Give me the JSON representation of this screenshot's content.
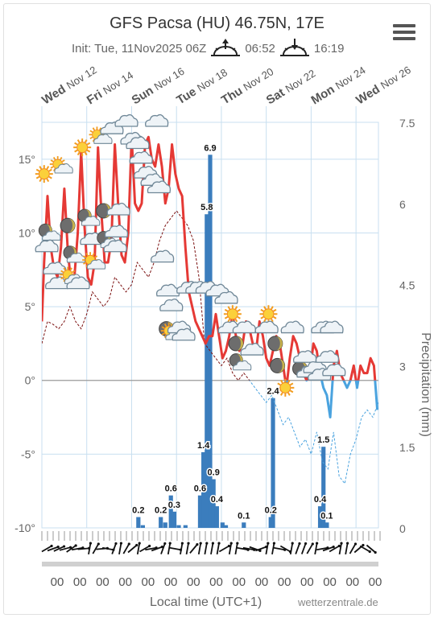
{
  "header": {
    "title": "GFS Pacsa (HU) 46.75N, 17E",
    "init": "Init: Tue, 11Nov2025 06Z",
    "sunrise": "06:52",
    "sunset": "16:19",
    "menu_icon": "hamburger-menu-icon"
  },
  "day_labels": [
    {
      "day": "Wed",
      "date": "Nov 12"
    },
    {
      "day": "Fri",
      "date": "Nov 14"
    },
    {
      "day": "Sun",
      "date": "Nov 16"
    },
    {
      "day": "Tue",
      "date": "Nov 18"
    },
    {
      "day": "Thu",
      "date": "Nov 20"
    },
    {
      "day": "Sat",
      "date": "Nov 22"
    },
    {
      "day": "Mon",
      "date": "Nov 24"
    },
    {
      "day": "Wed",
      "date": "Nov 26"
    }
  ],
  "x_tick_labels": [
    "00",
    "00",
    "00",
    "00",
    "00",
    "00",
    "00",
    "00",
    "00",
    "00",
    "00",
    "00",
    "00",
    "00",
    "00"
  ],
  "footer": {
    "xlabel": "Local time (UTC+1)",
    "credit": "wetterzentrale.de"
  },
  "chart_data": {
    "type": "line",
    "title": "GFS Pacsa (HU) 46.75N, 17E",
    "xlabel": "Local time (UTC+1)",
    "ylabel_left": "",
    "ylabel_right": "Precipitation (mm)",
    "y_left": {
      "min": -10,
      "max": 17.5,
      "ticks": [
        -10,
        -5,
        0,
        5,
        10,
        15
      ],
      "tick_labels": [
        "-10°",
        "-5°",
        "0°",
        "5°",
        "10°",
        "15°"
      ]
    },
    "y_right": {
      "min": 0,
      "max": 7.5,
      "ticks": [
        0,
        1.5,
        3,
        4.5,
        6,
        7.5
      ],
      "tick_labels": [
        "0",
        "1.5",
        "3",
        "4.5",
        "6",
        "7.5"
      ]
    },
    "x_range_days": [
      0,
      15
    ],
    "grid": true,
    "colors": {
      "temp_above_zero": "#e53935",
      "temp_below_zero": "#4aa3df",
      "dewpoint": "#7b1010",
      "dewpoint_below_zero": "#4aa3df",
      "precip_bar": "#3b7dbd",
      "grid": "#c8dff0"
    },
    "series": [
      {
        "name": "",
        "kind": "temperature",
        "x": [
          0.0,
          0.1,
          0.25,
          0.4,
          0.55,
          0.7,
          0.85,
          1.0,
          1.15,
          1.3,
          1.45,
          1.6,
          1.75,
          1.9,
          2.05,
          2.2,
          2.35,
          2.5,
          2.65,
          2.8,
          2.95,
          3.1,
          3.25,
          3.4,
          3.55,
          3.7,
          3.85,
          4.0,
          4.15,
          4.3,
          4.45,
          4.6,
          4.75,
          4.9,
          5.05,
          5.2,
          5.35,
          5.5,
          5.65,
          5.8,
          5.95,
          6.1,
          6.25,
          6.4,
          6.55,
          6.7,
          6.85,
          7.0,
          7.15,
          7.3,
          7.45,
          7.6,
          7.75,
          7.9,
          8.05,
          8.2,
          8.35,
          8.5,
          8.65,
          8.8,
          8.95,
          9.1,
          9.25,
          9.4,
          9.55,
          9.7,
          9.85,
          10.0,
          10.15,
          10.3,
          10.45,
          10.6,
          10.75,
          10.9,
          11.05,
          11.2,
          11.35,
          11.5,
          11.65,
          11.8,
          11.95,
          12.1,
          12.25,
          12.4,
          12.55,
          12.7,
          12.85,
          13.0,
          13.15,
          13.3,
          13.45,
          13.6,
          13.75,
          13.9,
          14.05,
          14.2,
          14.35,
          14.5,
          14.65,
          14.8,
          14.95
        ],
        "y": [
          4.0,
          8.0,
          12.5,
          9.0,
          7.5,
          7.0,
          9.0,
          13.0,
          9.0,
          6.5,
          7.0,
          10.0,
          15.5,
          10.5,
          7.0,
          6.5,
          8.0,
          15.8,
          11.5,
          8.0,
          8.0,
          9.5,
          16.0,
          12.0,
          8.5,
          8.0,
          10.0,
          16.5,
          12.0,
          11.5,
          12.0,
          16.0,
          16.5,
          15.0,
          14.5,
          16.0,
          14.5,
          12.0,
          13.0,
          16.0,
          14.0,
          13.0,
          12.5,
          9.0,
          6.0,
          5.0,
          4.0,
          3.5,
          3.0,
          2.5,
          3.0,
          3.0,
          4.5,
          3.0,
          1.5,
          2.0,
          3.0,
          4.5,
          3.0,
          2.0,
          2.5,
          4.0,
          3.5,
          2.5,
          2.0,
          4.0,
          3.0,
          1.5,
          1.0,
          2.0,
          3.0,
          2.5,
          1.0,
          -0.5,
          1.5,
          3.0,
          2.5,
          1.5,
          0.5,
          0.0,
          0.5,
          2.5,
          2.0,
          0.5,
          -0.5,
          -1.0,
          -2.5,
          1.0,
          2.0,
          0.5,
          0.0,
          -0.5,
          0.0,
          1.0,
          -0.5,
          1.0,
          0.5,
          0.5,
          1.5,
          1.0,
          -2.0
        ]
      },
      {
        "name": "",
        "kind": "dewpoint",
        "x": [
          0.0,
          0.25,
          0.5,
          0.75,
          1.0,
          1.25,
          1.5,
          1.75,
          2.0,
          2.25,
          2.5,
          2.75,
          3.0,
          3.25,
          3.5,
          3.75,
          4.0,
          4.25,
          4.5,
          4.75,
          5.0,
          5.25,
          5.5,
          5.75,
          6.0,
          6.25,
          6.5,
          6.75,
          7.0,
          7.25,
          7.5,
          7.75,
          8.0,
          8.25,
          8.5,
          8.75,
          9.0,
          9.25,
          9.5,
          9.75,
          10.0,
          10.25,
          10.5,
          10.75,
          11.0,
          11.25,
          11.5,
          11.75,
          12.0,
          12.25,
          12.5,
          12.75,
          13.0,
          13.25,
          13.5,
          13.75,
          14.0,
          14.25,
          14.5,
          14.75,
          15.0
        ],
        "y": [
          2.5,
          4.0,
          3.8,
          3.5,
          4.0,
          5.0,
          4.0,
          3.5,
          4.5,
          6.0,
          5.5,
          5.0,
          5.5,
          7.0,
          6.5,
          6.0,
          6.5,
          8.0,
          7.5,
          7.0,
          8.0,
          9.5,
          10.5,
          11.0,
          11.5,
          11.0,
          10.5,
          9.5,
          7.0,
          2.5,
          2.0,
          1.5,
          1.0,
          1.5,
          0.5,
          0.0,
          0.5,
          0.0,
          -0.5,
          -1.0,
          -1.5,
          -1.0,
          -2.0,
          -3.0,
          -2.5,
          -3.5,
          -4.5,
          -4.0,
          -5.0,
          -3.5,
          -5.5,
          -6.0,
          -3.5,
          -6.5,
          -7.0,
          -5.0,
          -4.0,
          -2.5,
          -2.0,
          -2.5,
          -1.5
        ]
      },
      {
        "name": "",
        "kind": "precipitation",
        "x": [
          4.3,
          4.5,
          5.3,
          5.5,
          5.75,
          5.9,
          6.1,
          6.4,
          7.05,
          7.2,
          7.35,
          7.5,
          7.65,
          7.8,
          8.05,
          8.2,
          9.0,
          10.2,
          10.3,
          12.4,
          12.55,
          12.7
        ],
        "y": [
          0.2,
          0.05,
          0.2,
          0.1,
          0.6,
          0.3,
          0.05,
          0.05,
          0.6,
          1.4,
          5.8,
          6.9,
          0.9,
          0.4,
          0.1,
          0.05,
          0.1,
          0.2,
          2.4,
          0.4,
          1.5,
          0.1
        ]
      }
    ],
    "precip_labels": [
      {
        "x": 4.3,
        "value": "0.2"
      },
      {
        "x": 5.3,
        "value": "0.2"
      },
      {
        "x": 5.75,
        "value": "0.6"
      },
      {
        "x": 5.9,
        "value": "0.3"
      },
      {
        "x": 7.05,
        "value": "0.6"
      },
      {
        "x": 7.2,
        "value": "1.4"
      },
      {
        "x": 7.35,
        "value": "5.8"
      },
      {
        "x": 7.5,
        "value": "6.9"
      },
      {
        "x": 7.65,
        "value": "0.9"
      },
      {
        "x": 7.8,
        "value": "0.4"
      },
      {
        "x": 9.0,
        "value": "0.1"
      },
      {
        "x": 10.2,
        "value": "0.2"
      },
      {
        "x": 10.3,
        "value": "2.4"
      },
      {
        "x": 12.4,
        "value": "0.4"
      },
      {
        "x": 12.55,
        "value": "1.5"
      },
      {
        "x": 12.7,
        "value": "0.1"
      }
    ],
    "weather_icons": [
      {
        "x": 0.1,
        "y": 14.0,
        "icon": "sun-icon"
      },
      {
        "x": 0.3,
        "y": 10.0,
        "icon": "moon-cloud-icon"
      },
      {
        "x": 0.2,
        "y": 9.0,
        "icon": "cloud-icon"
      },
      {
        "x": 0.55,
        "y": 7.5,
        "icon": "cloud-icon"
      },
      {
        "x": 0.65,
        "y": 6.5,
        "icon": "cloud-icon"
      },
      {
        "x": 0.85,
        "y": 14.5,
        "icon": "sun-cloud-icon"
      },
      {
        "x": 1.15,
        "y": 10.5,
        "icon": "moon-icon"
      },
      {
        "x": 1.4,
        "y": 8.5,
        "icon": "moon-cloud-icon"
      },
      {
        "x": 1.3,
        "y": 7.0,
        "icon": "sun-cloud-icon"
      },
      {
        "x": 1.6,
        "y": 6.5,
        "icon": "cloud-icon"
      },
      {
        "x": 1.8,
        "y": 15.8,
        "icon": "sun-icon"
      },
      {
        "x": 2.05,
        "y": 11.0,
        "icon": "moon-cloud-icon"
      },
      {
        "x": 2.2,
        "y": 9.5,
        "icon": "cloud-icon"
      },
      {
        "x": 2.3,
        "y": 8.0,
        "icon": "sun-cloud-icon"
      },
      {
        "x": 2.6,
        "y": 16.5,
        "icon": "sun-cloud-icon"
      },
      {
        "x": 2.75,
        "y": 11.5,
        "icon": "moon-icon"
      },
      {
        "x": 2.9,
        "y": 9.5,
        "icon": "moon-cloud-icon"
      },
      {
        "x": 3.1,
        "y": 17.0,
        "icon": "cloud-icon"
      },
      {
        "x": 3.4,
        "y": 11.5,
        "icon": "cloud-icon"
      },
      {
        "x": 3.3,
        "y": 10.0,
        "icon": "cloud-icon"
      },
      {
        "x": 3.25,
        "y": 9.0,
        "icon": "cloud-icon"
      },
      {
        "x": 3.75,
        "y": 17.5,
        "icon": "cloud-icon"
      },
      {
        "x": 4.0,
        "y": 16.3,
        "icon": "cloud-icon"
      },
      {
        "x": 4.25,
        "y": 16.0,
        "icon": "cloud-icon"
      },
      {
        "x": 4.4,
        "y": 15.0,
        "icon": "cloud-icon"
      },
      {
        "x": 4.6,
        "y": 14.0,
        "icon": "cloud-icon"
      },
      {
        "x": 4.9,
        "y": 13.5,
        "icon": "cloud-icon"
      },
      {
        "x": 5.2,
        "y": 13.0,
        "icon": "cloud-icon"
      },
      {
        "x": 5.1,
        "y": 17.5,
        "icon": "cloud-icon"
      },
      {
        "x": 5.35,
        "y": 8.3,
        "icon": "cloud-icon"
      },
      {
        "x": 5.6,
        "y": 6.0,
        "icon": "cloud-icon"
      },
      {
        "x": 5.75,
        "y": 5.0,
        "icon": "cloud-icon"
      },
      {
        "x": 5.55,
        "y": 3.5,
        "icon": "moon-icon"
      },
      {
        "x": 5.8,
        "y": 3.2,
        "icon": "sun-cloud-icon"
      },
      {
        "x": 6.1,
        "y": 3.5,
        "icon": "cloud-icon"
      },
      {
        "x": 6.3,
        "y": 3.0,
        "icon": "cloud-icon"
      },
      {
        "x": 6.5,
        "y": 6.2,
        "icon": "cloud-icon"
      },
      {
        "x": 6.9,
        "y": 6.2,
        "icon": "cloud-icon"
      },
      {
        "x": 7.35,
        "y": 6.2,
        "icon": "cloud-icon"
      },
      {
        "x": 7.8,
        "y": 6.0,
        "icon": "cloud-icon"
      },
      {
        "x": 8.2,
        "y": 5.5,
        "icon": "cloud-icon"
      },
      {
        "x": 8.5,
        "y": 4.5,
        "icon": "sun-icon"
      },
      {
        "x": 8.35,
        "y": 3.5,
        "icon": "cloud-icon"
      },
      {
        "x": 8.65,
        "y": 2.5,
        "icon": "moon-icon"
      },
      {
        "x": 8.8,
        "y": 1.2,
        "icon": "moon-cloud-icon"
      },
      {
        "x": 9.0,
        "y": 3.5,
        "icon": "cloud-icon"
      },
      {
        "x": 9.35,
        "y": 2.0,
        "icon": "cloud-icon"
      },
      {
        "x": 10.1,
        "y": 4.5,
        "icon": "sun-icon"
      },
      {
        "x": 10.0,
        "y": 3.5,
        "icon": "cloud-icon"
      },
      {
        "x": 10.4,
        "y": 2.5,
        "icon": "moon-icon"
      },
      {
        "x": 10.5,
        "y": 1.0,
        "icon": "moon-icon"
      },
      {
        "x": 10.85,
        "y": -0.5,
        "icon": "sun-icon"
      },
      {
        "x": 11.15,
        "y": 3.5,
        "icon": "cloud-icon"
      },
      {
        "x": 11.5,
        "y": 0.8,
        "icon": "moon-icon"
      },
      {
        "x": 11.7,
        "y": 1.5,
        "icon": "cloud-icon"
      },
      {
        "x": 11.85,
        "y": 0.5,
        "icon": "cloud-icon"
      },
      {
        "x": 12.15,
        "y": 0.8,
        "icon": "cloud-icon"
      },
      {
        "x": 12.5,
        "y": 3.5,
        "icon": "cloud-icon"
      },
      {
        "x": 12.9,
        "y": 3.5,
        "icon": "cloud-icon"
      },
      {
        "x": 12.35,
        "y": 0.3,
        "icon": "cloud-icon"
      },
      {
        "x": 12.7,
        "y": 1.5,
        "icon": "cloud-icon"
      },
      {
        "x": 13.0,
        "y": 0.6,
        "icon": "cloud-icon"
      }
    ]
  }
}
